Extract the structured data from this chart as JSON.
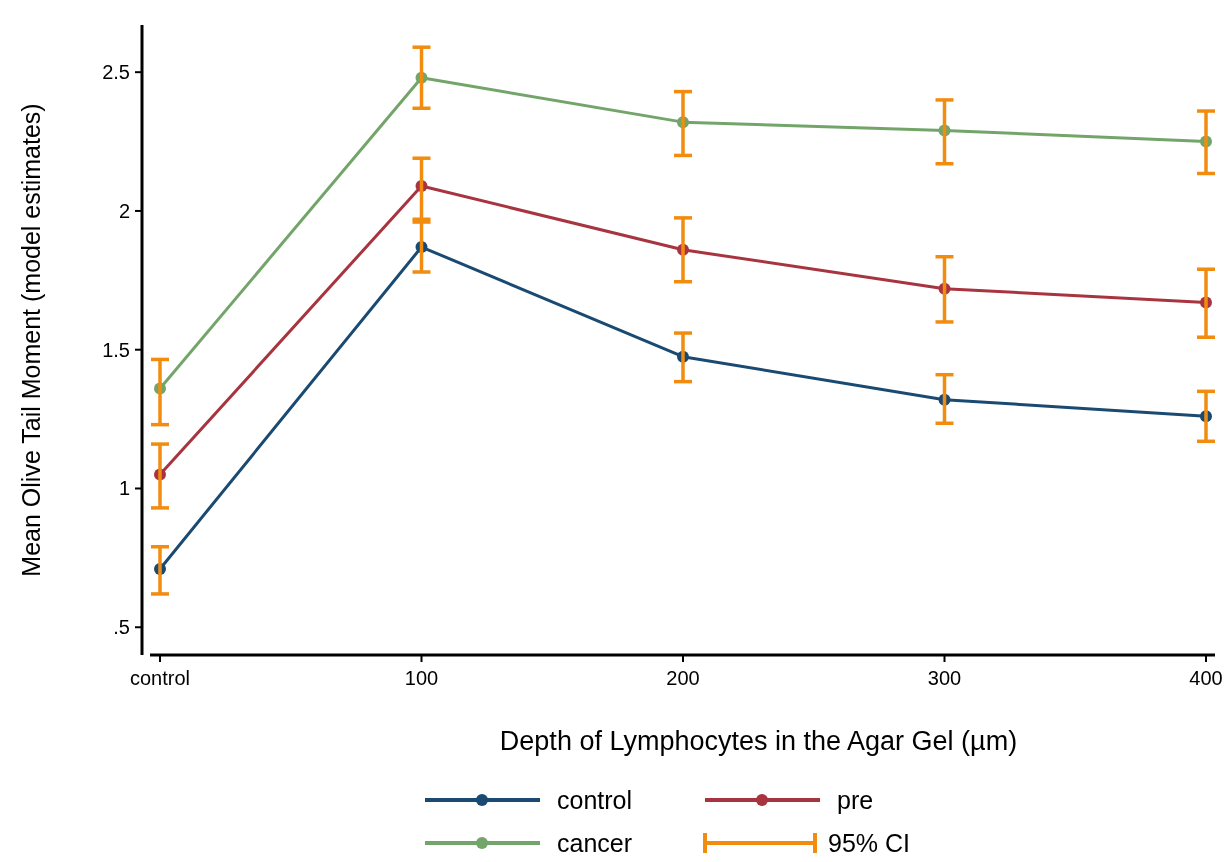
{
  "chart_data": {
    "type": "line",
    "xlabel": "Depth of Lymphocytes in the Agar Gel (µm)",
    "ylabel": "Mean Olive Tail Moment (model estimates)",
    "categories": [
      "control",
      "100",
      "200",
      "300",
      "400"
    ],
    "series": [
      {
        "name": "control",
        "color": "#1a4a72",
        "values": [
          0.71,
          1.87,
          1.475,
          1.32,
          1.26
        ],
        "errors": [
          [
            0.62,
            0.79
          ],
          [
            1.78,
            1.96
          ],
          [
            1.385,
            1.56
          ],
          [
            1.235,
            1.41
          ],
          [
            1.17,
            1.35
          ]
        ]
      },
      {
        "name": "pre",
        "color": "#a8343f",
        "values": [
          1.05,
          2.09,
          1.86,
          1.72,
          1.67
        ],
        "errors": [
          [
            0.93,
            1.16
          ],
          [
            1.97,
            2.19
          ],
          [
            1.745,
            1.975
          ],
          [
            1.6,
            1.835
          ],
          [
            1.545,
            1.79
          ]
        ]
      },
      {
        "name": "cancer",
        "color": "#73a56a",
        "values": [
          1.36,
          2.48,
          2.32,
          2.29,
          2.25
        ],
        "errors": [
          [
            1.23,
            1.465
          ],
          [
            2.37,
            2.59
          ],
          [
            2.2,
            2.43
          ],
          [
            2.17,
            2.4
          ],
          [
            2.135,
            2.36
          ]
        ]
      }
    ],
    "annotations": [
      "95% CI"
    ],
    "ylim": [
      0.4,
      2.67
    ],
    "yticks": [
      {
        "value": 0.5,
        "label": ".5"
      },
      1,
      1.5,
      2,
      2.5
    ],
    "marker": "circle",
    "legend": "bottom",
    "grid": false
  }
}
